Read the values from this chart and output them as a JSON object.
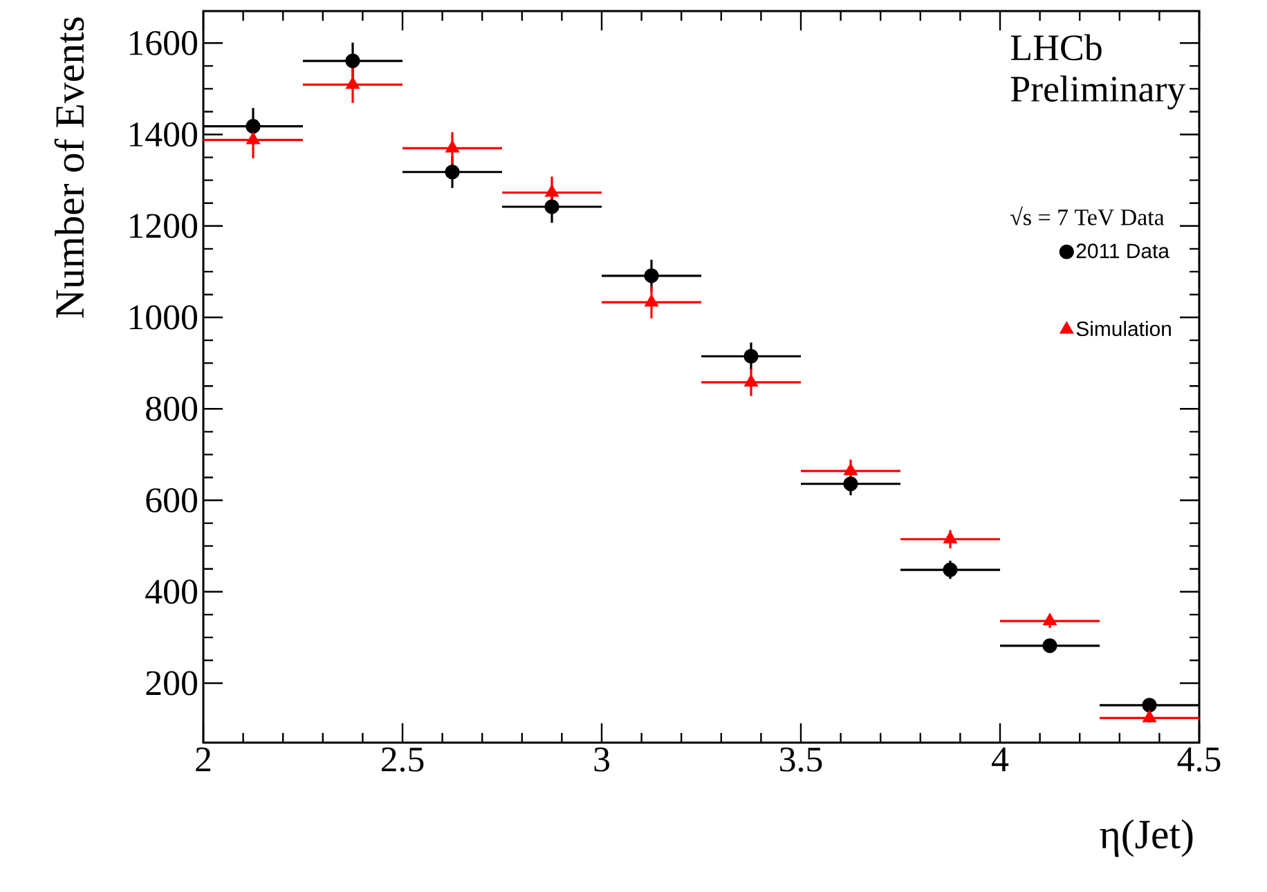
{
  "chart_data": {
    "type": "scatter",
    "xlabel": "η(Jet)",
    "ylabel": "Number of Events",
    "annotations": [
      "LHCb Preliminary",
      "√s = 7 TeV Data"
    ],
    "x": [
      2.125,
      2.375,
      2.625,
      2.875,
      3.125,
      3.375,
      3.625,
      3.875,
      4.125,
      4.375
    ],
    "series": [
      {
        "name": "2011 Data",
        "color": "#000000",
        "marker": "circle",
        "values": [
          1418,
          1561,
          1318,
          1242,
          1091,
          915,
          636,
          448,
          282,
          152
        ],
        "errors": [
          40,
          40,
          35,
          35,
          35,
          30,
          25,
          20,
          15,
          12
        ],
        "xerrors": [
          0.125,
          0.125,
          0.125,
          0.125,
          0.125,
          0.125,
          0.125,
          0.125,
          0.125,
          0.125
        ]
      },
      {
        "name": "Simulation",
        "color": "#ff0000",
        "marker": "triangle",
        "values": [
          1388,
          1509,
          1370,
          1273,
          1033,
          858,
          664,
          515,
          336,
          124
        ],
        "errors": [
          40,
          40,
          35,
          35,
          35,
          30,
          25,
          20,
          15,
          10
        ],
        "xerrors": [
          0.125,
          0.125,
          0.125,
          0.125,
          0.125,
          0.125,
          0.125,
          0.125,
          0.125,
          0.125
        ]
      }
    ],
    "xlim": [
      2,
      4.5
    ],
    "ylim": [
      70,
      1670
    ],
    "xticks": [
      2,
      2.5,
      3,
      3.5,
      4,
      4.5
    ],
    "yticks": [
      200,
      400,
      600,
      800,
      1000,
      1200,
      1400,
      1600
    ],
    "legend": "right",
    "grid": false
  }
}
